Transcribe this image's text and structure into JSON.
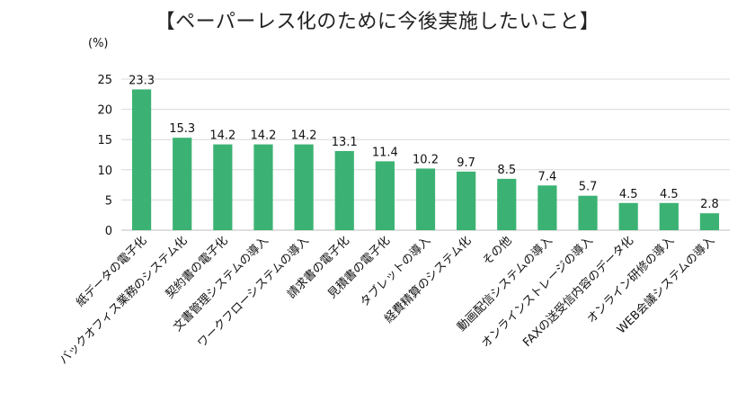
{
  "chart_data": {
    "type": "bar",
    "title": "【ペーパーレス化のために今後実施したいこと】",
    "ylabel": "(%)",
    "ylim": [
      0,
      25
    ],
    "yticks": [
      0,
      5,
      10,
      15,
      20,
      25
    ],
    "grid": true,
    "bar_color": "#3bb273",
    "grid_color": "#d9d9d9",
    "categories": [
      "紙データの電子化",
      "バックオフィス業務のシステム化",
      "契約書の電子化",
      "文書管理システムの導入",
      "ワークフローシステムの導入",
      "請求書の電子化",
      "見積書の電子化",
      "タブレットの導入",
      "経費精算のシステム化",
      "その他",
      "動画配信システムの導入",
      "オンラインストレージの導入",
      "FAXの送受信内容のデータ化",
      "オンライン研修の導入",
      "WEB会議システムの導入"
    ],
    "values": [
      23.3,
      15.3,
      14.2,
      14.2,
      14.2,
      13.1,
      11.4,
      10.2,
      9.7,
      8.5,
      7.4,
      5.7,
      4.5,
      4.5,
      2.8
    ],
    "value_labels": [
      "23.3",
      "15.3",
      "14.2",
      "14.2",
      "14.2",
      "13.1",
      "11.4",
      "10.2",
      "9.7",
      "8.5",
      "7.4",
      "5.7",
      "4.5",
      "4.5",
      "2.8"
    ]
  }
}
